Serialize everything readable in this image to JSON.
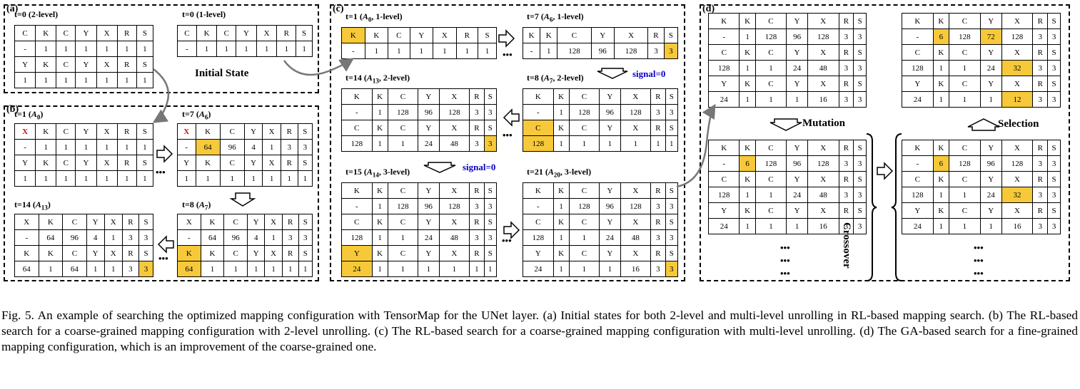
{
  "panels": {
    "a": "(a)",
    "b": "(b)",
    "c": "(c)",
    "d": "(d)"
  },
  "initial_state": "Initial State",
  "signal": "signal=0",
  "ops": {
    "mutation": "Mutation",
    "selection": "Selection",
    "crossover": "Crossover"
  },
  "ellipsis": "•••",
  "colors": {
    "highlight": "#f7c93a",
    "signal": "#0a00c8",
    "red": "#d00000"
  },
  "grids": {
    "a0": {
      "t": "t=0",
      "s": " (2-level)",
      "rows": [
        [
          "C",
          "K",
          "C",
          "Y",
          "X",
          "R",
          "S"
        ],
        [
          "-",
          "1",
          "1",
          "1",
          "1",
          "1",
          "1"
        ],
        [
          "Y",
          "K",
          "C",
          "Y",
          "X",
          "R",
          "S"
        ],
        [
          "1",
          "1",
          "1",
          "1",
          "1",
          "1",
          "1"
        ]
      ]
    },
    "a1": {
      "t": "t=0",
      "s": " (1-level)",
      "rows": [
        [
          "C",
          "K",
          "C",
          "Y",
          "X",
          "R",
          "S"
        ],
        [
          "-",
          "1",
          "1",
          "1",
          "1",
          "1",
          "1"
        ]
      ]
    },
    "b1": {
      "t": "t=1 (",
      "a": "A",
      "n": "0",
      "s": ")",
      "rows": [
        [
          "X",
          "K",
          "C",
          "Y",
          "X",
          "R",
          "S"
        ],
        [
          "-",
          "1",
          "1",
          "1",
          "1",
          "1",
          "1"
        ],
        [
          "Y",
          "K",
          "C",
          "Y",
          "X",
          "R",
          "S"
        ],
        [
          "1",
          "1",
          "1",
          "1",
          "1",
          "1",
          "1"
        ]
      ]
    },
    "b7": {
      "t": "t=7 (",
      "a": "A",
      "n": "6",
      "s": ")",
      "rows": [
        [
          "X",
          "K",
          "C",
          "Y",
          "X",
          "R",
          "S"
        ],
        [
          "-",
          "64",
          "96",
          "4",
          "1",
          "3",
          "3"
        ],
        [
          "Y",
          "K",
          "C",
          "Y",
          "X",
          "R",
          "S"
        ],
        [
          "1",
          "1",
          "1",
          "1",
          "1",
          "1",
          "1"
        ]
      ]
    },
    "b14": {
      "t": "t=14 (",
      "a": "A",
      "n": "13",
      "s": ")",
      "rows": [
        [
          "X",
          "K",
          "C",
          "Y",
          "X",
          "R",
          "S"
        ],
        [
          "-",
          "64",
          "96",
          "4",
          "1",
          "3",
          "3"
        ],
        [
          "K",
          "K",
          "C",
          "Y",
          "X",
          "R",
          "S"
        ],
        [
          "64",
          "1",
          "64",
          "1",
          "1",
          "3",
          "3"
        ]
      ]
    },
    "b8": {
      "t": "t=8 (",
      "a": "A",
      "n": "7",
      "s": ")",
      "rows": [
        [
          "X",
          "K",
          "C",
          "Y",
          "X",
          "R",
          "S"
        ],
        [
          "-",
          "64",
          "96",
          "4",
          "1",
          "3",
          "3"
        ],
        [
          "K",
          "K",
          "C",
          "Y",
          "X",
          "R",
          "S"
        ],
        [
          "64",
          "1",
          "1",
          "1",
          "1",
          "1",
          "1"
        ]
      ]
    },
    "c1": {
      "t": "t=1 (",
      "a": "A",
      "n": "0",
      "s": ", 1-level)",
      "rows": [
        [
          "K",
          "K",
          "C",
          "Y",
          "X",
          "R",
          "S"
        ],
        [
          "-",
          "1",
          "1",
          "1",
          "1",
          "1",
          "1"
        ]
      ]
    },
    "c7": {
      "t": "t=7 (",
      "a": "A",
      "n": "6",
      "s": ", 1-level)",
      "rows": [
        [
          "K",
          "K",
          "C",
          "Y",
          "X",
          "R",
          "S"
        ],
        [
          "-",
          "1",
          "128",
          "96",
          "128",
          "3",
          "3"
        ]
      ]
    },
    "c14": {
      "t": "t=14 (",
      "a": "A",
      "n": "13",
      "s": ", 2-level)",
      "rows": [
        [
          "K",
          "K",
          "C",
          "Y",
          "X",
          "R",
          "S"
        ],
        [
          "-",
          "1",
          "128",
          "96",
          "128",
          "3",
          "3"
        ],
        [
          "C",
          "K",
          "C",
          "Y",
          "X",
          "R",
          "S"
        ],
        [
          "128",
          "1",
          "1",
          "24",
          "48",
          "3",
          "3"
        ]
      ]
    },
    "c8": {
      "t": "t=8 (",
      "a": "A",
      "n": "7",
      "s": ", 2-level)",
      "rows": [
        [
          "K",
          "K",
          "C",
          "Y",
          "X",
          "R",
          "S"
        ],
        [
          "-",
          "1",
          "128",
          "96",
          "128",
          "3",
          "3"
        ],
        [
          "C",
          "K",
          "C",
          "Y",
          "X",
          "R",
          "S"
        ],
        [
          "128",
          "1",
          "1",
          "1",
          "1",
          "1",
          "1"
        ]
      ]
    },
    "c15": {
      "t": "t=15 (",
      "a": "A",
      "n": "14",
      "s": ", 3-level)",
      "rows": [
        [
          "K",
          "K",
          "C",
          "Y",
          "X",
          "R",
          "S"
        ],
        [
          "-",
          "1",
          "128",
          "96",
          "128",
          "3",
          "3"
        ],
        [
          "C",
          "K",
          "C",
          "Y",
          "X",
          "R",
          "S"
        ],
        [
          "128",
          "1",
          "1",
          "24",
          "48",
          "3",
          "3"
        ],
        [
          "Y",
          "K",
          "C",
          "Y",
          "X",
          "R",
          "S"
        ],
        [
          "24",
          "1",
          "1",
          "1",
          "1",
          "1",
          "1"
        ]
      ]
    },
    "c21": {
      "t": "t=21 (",
      "a": "A",
      "n": "20",
      "s": ", 3-level)",
      "rows": [
        [
          "K",
          "K",
          "C",
          "Y",
          "X",
          "R",
          "S"
        ],
        [
          "-",
          "1",
          "128",
          "96",
          "128",
          "3",
          "3"
        ],
        [
          "C",
          "K",
          "C",
          "Y",
          "X",
          "R",
          "S"
        ],
        [
          "128",
          "1",
          "1",
          "24",
          "48",
          "3",
          "3"
        ],
        [
          "Y",
          "K",
          "C",
          "Y",
          "X",
          "R",
          "S"
        ],
        [
          "24",
          "1",
          "1",
          "1",
          "16",
          "3",
          "3"
        ]
      ]
    },
    "d1": {
      "rows": [
        [
          "K",
          "K",
          "C",
          "Y",
          "X",
          "R",
          "S"
        ],
        [
          "-",
          "1",
          "128",
          "96",
          "128",
          "3",
          "3"
        ],
        [
          "C",
          "K",
          "C",
          "Y",
          "X",
          "R",
          "S"
        ],
        [
          "128",
          "1",
          "1",
          "24",
          "48",
          "3",
          "3"
        ],
        [
          "Y",
          "K",
          "C",
          "Y",
          "X",
          "R",
          "S"
        ],
        [
          "24",
          "1",
          "1",
          "1",
          "16",
          "3",
          "3"
        ]
      ]
    },
    "d2": {
      "rows": [
        [
          "K",
          "K",
          "C",
          "Y",
          "X",
          "R",
          "S"
        ],
        [
          "-",
          "6",
          "128",
          "72",
          "128",
          "3",
          "3"
        ],
        [
          "C",
          "K",
          "C",
          "Y",
          "X",
          "R",
          "S"
        ],
        [
          "128",
          "1",
          "1",
          "24",
          "32",
          "3",
          "3"
        ],
        [
          "Y",
          "K",
          "C",
          "Y",
          "X",
          "R",
          "S"
        ],
        [
          "24",
          "1",
          "1",
          "1",
          "12",
          "3",
          "3"
        ]
      ]
    },
    "d3": {
      "rows": [
        [
          "K",
          "K",
          "C",
          "Y",
          "X",
          "R",
          "S"
        ],
        [
          "-",
          "6",
          "128",
          "96",
          "128",
          "3",
          "3"
        ],
        [
          "C",
          "K",
          "C",
          "Y",
          "X",
          "R",
          "S"
        ],
        [
          "128",
          "1",
          "1",
          "24",
          "48",
          "3",
          "3"
        ],
        [
          "Y",
          "K",
          "C",
          "Y",
          "X",
          "R",
          "S"
        ],
        [
          "24",
          "1",
          "1",
          "1",
          "16",
          "3",
          "3"
        ]
      ]
    },
    "d4": {
      "rows": [
        [
          "K",
          "K",
          "C",
          "Y",
          "X",
          "R",
          "S"
        ],
        [
          "-",
          "6",
          "128",
          "96",
          "128",
          "3",
          "3"
        ],
        [
          "C",
          "K",
          "C",
          "Y",
          "X",
          "R",
          "S"
        ],
        [
          "128",
          "1",
          "1",
          "24",
          "32",
          "3",
          "3"
        ],
        [
          "Y",
          "K",
          "C",
          "Y",
          "X",
          "R",
          "S"
        ],
        [
          "24",
          "1",
          "1",
          "1",
          "16",
          "3",
          "3"
        ]
      ]
    }
  },
  "caption": "Fig. 5.   An example of searching the optimized mapping configuration with TensorMap for the UNet layer. (a) Initial states for both 2-level and multi-level unrolling in RL-based mapping search. (b) The RL-based search for a coarse-grained mapping configuration with 2-level unrolling. (c) The RL-based search for a coarse-grained mapping configuration with multi-level unrolling. (d) The GA-based search for a fine-grained mapping configuration, which is an improvement of the coarse-grained one."
}
